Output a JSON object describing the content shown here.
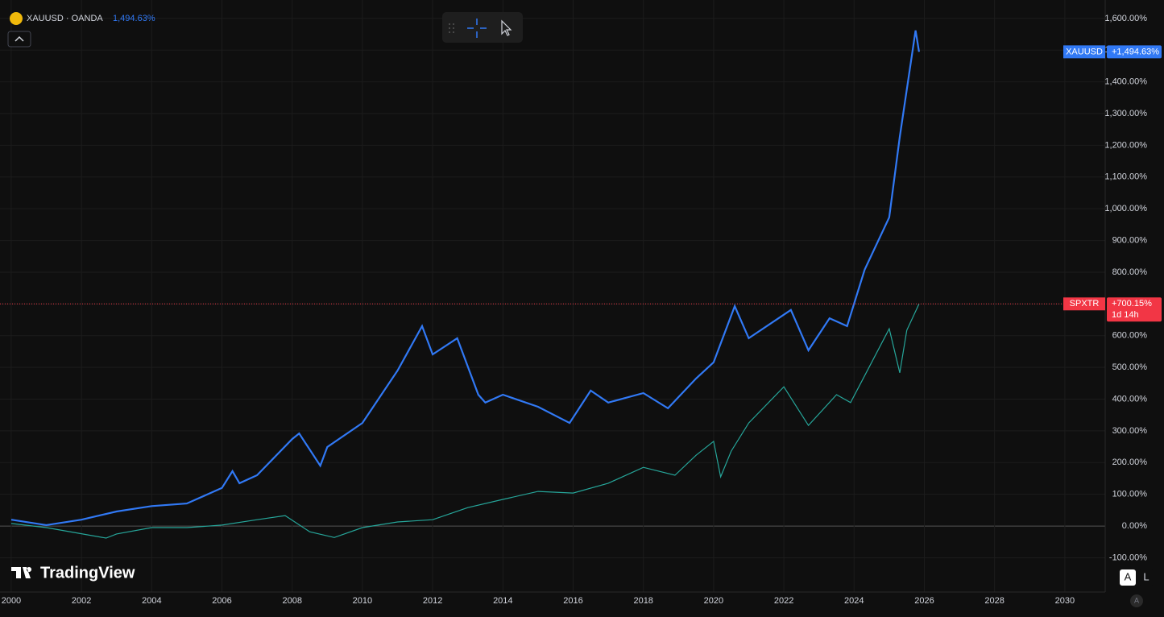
{
  "chart_data": {
    "type": "line",
    "symbol": "XAUUSD · OANDA",
    "legend_value": "1,494.63%",
    "countdown": "1d 14h",
    "brand": "TradingView",
    "scale_buttons": [
      "A",
      "L"
    ],
    "corner_button": "A",
    "xlim": [
      1999.68,
      2031.15
    ],
    "xticks": [
      2000,
      2002,
      2004,
      2006,
      2008,
      2010,
      2012,
      2014,
      2016,
      2018,
      2020,
      2022,
      2024,
      2026,
      2028,
      2030
    ],
    "ylim": [
      -208,
      1658
    ],
    "yticks": [
      {
        "value": -100,
        "label": "-100.00%"
      },
      {
        "value": 0,
        "label": "0.00%"
      },
      {
        "value": 100,
        "label": "100.00%"
      },
      {
        "value": 200,
        "label": "200.00%"
      },
      {
        "value": 300,
        "label": "300.00%"
      },
      {
        "value": 400,
        "label": "400.00%"
      },
      {
        "value": 500,
        "label": "500.00%"
      },
      {
        "value": 600,
        "label": "600.00%"
      },
      {
        "value": 700,
        "label": "700.00%"
      },
      {
        "value": 800,
        "label": "800.00%"
      },
      {
        "value": 900,
        "label": "900.00%"
      },
      {
        "value": 1000,
        "label": "1,000.00%"
      },
      {
        "value": 1100,
        "label": "1,100.00%"
      },
      {
        "value": 1200,
        "label": "1,200.00%"
      },
      {
        "value": 1300,
        "label": "1,300.00%"
      },
      {
        "value": 1400,
        "label": "1,400.00%"
      },
      {
        "value": 1500,
        "label": "1,500.00%"
      },
      {
        "value": 1600,
        "label": "1,600.00%"
      }
    ],
    "grid": true,
    "series": [
      {
        "name": "XAUUSD",
        "color": "#3179f5",
        "price_label": "+1,494.63%",
        "x": [
          2000,
          2001,
          2002,
          2003,
          2004,
          2005,
          2006,
          2006.3,
          2006.5,
          2007,
          2008,
          2008.2,
          2008.8,
          2009,
          2010,
          2011,
          2011.7,
          2012,
          2012.7,
          2013.3,
          2013.5,
          2014,
          2015,
          2015.9,
          2016.5,
          2017,
          2018,
          2018.7,
          2019.5,
          2020,
          2020.6,
          2021,
          2022.2,
          2022.7,
          2023.3,
          2023.8,
          2024.3,
          2025,
          2025.3,
          2025.75,
          2025.85
        ],
        "values": [
          20,
          3,
          20,
          46,
          63,
          71,
          120,
          173,
          135,
          160,
          274,
          292,
          190,
          249,
          325,
          490,
          630,
          541,
          592,
          414,
          389,
          414,
          376,
          325,
          427,
          389,
          419,
          371,
          465,
          516,
          693,
          592,
          681,
          554,
          655,
          630,
          808,
          973,
          1227,
          1562,
          1494.63
        ]
      },
      {
        "name": "SPXTR",
        "color": "#26a69a",
        "price_label": "+700.15%",
        "x": [
          2000,
          2001,
          2002.7,
          2003,
          2004,
          2005,
          2006,
          2007,
          2007.8,
          2008.5,
          2009.2,
          2010,
          2011,
          2012,
          2013,
          2014,
          2015,
          2016,
          2017,
          2018,
          2018.9,
          2019.5,
          2020,
          2020.2,
          2020.5,
          2021,
          2022,
          2022.7,
          2023.5,
          2023.9,
          2024.5,
          2025,
          2025.3,
          2025.5,
          2025.85
        ],
        "values": [
          8,
          -5,
          -38,
          -25,
          -5,
          -5,
          3,
          20,
          33,
          -18,
          -36,
          -5,
          13,
          20,
          58,
          84,
          109,
          104,
          135,
          185,
          160,
          223,
          267,
          155,
          236,
          325,
          439,
          317,
          414,
          389,
          516,
          622,
          483,
          617,
          700.15
        ]
      }
    ]
  }
}
